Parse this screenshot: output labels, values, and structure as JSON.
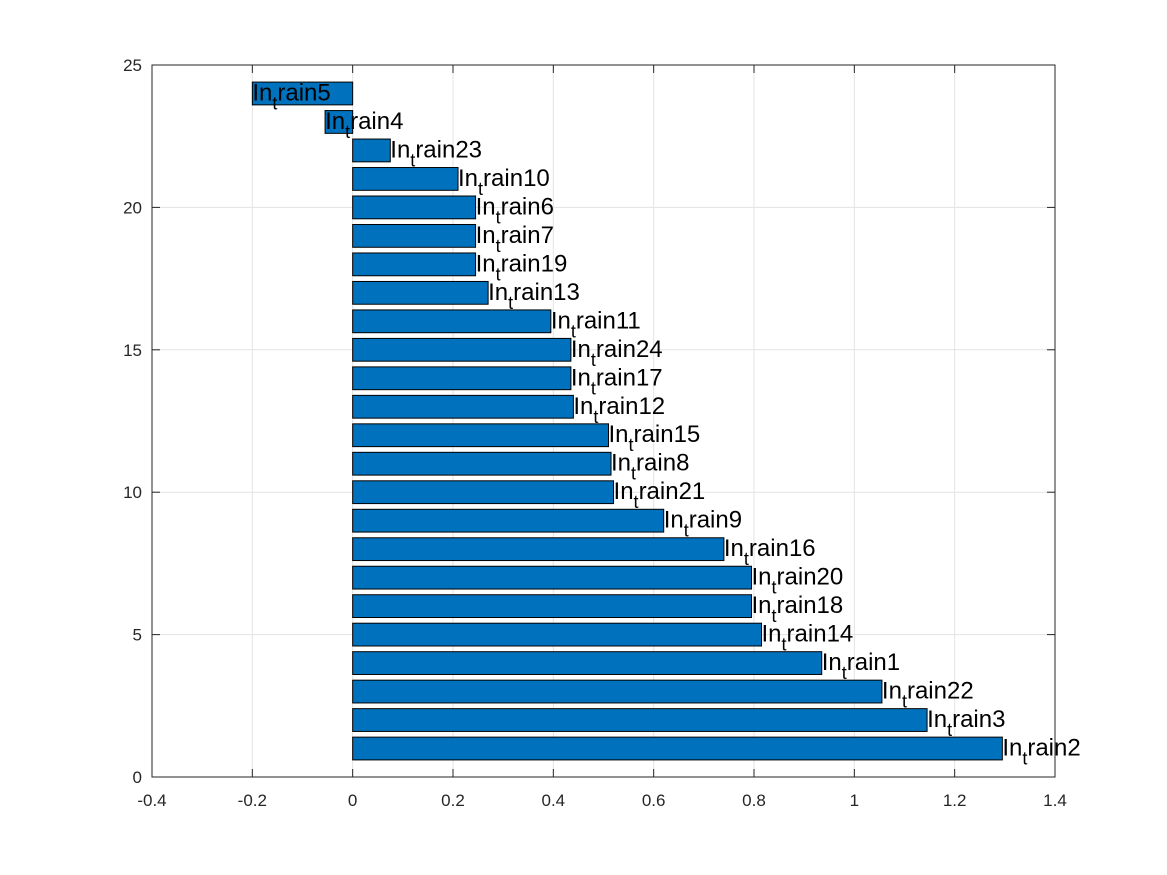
{
  "chart_data": {
    "type": "bar",
    "orientation": "horizontal",
    "title": "",
    "xlabel": "",
    "ylabel": "",
    "xlim": [
      -0.4,
      1.4
    ],
    "ylim": [
      0,
      25
    ],
    "xticks": [
      "-0.4",
      "-0.2",
      "0",
      "0.2",
      "0.4",
      "0.6",
      "0.8",
      "1",
      "1.2",
      "1.4"
    ],
    "yticks": [
      "0",
      "5",
      "10",
      "15",
      "20",
      "25"
    ],
    "grid": true,
    "bar_color": "#0072BD",
    "bars": [
      {
        "y": 1,
        "value": 1.295,
        "label": "In",
        "label_sub": "t",
        "label_rest": "rain2"
      },
      {
        "y": 2,
        "value": 1.145,
        "label": "In",
        "label_sub": "t",
        "label_rest": "rain3"
      },
      {
        "y": 3,
        "value": 1.055,
        "label": "In",
        "label_sub": "t",
        "label_rest": "rain22"
      },
      {
        "y": 4,
        "value": 0.935,
        "label": "In",
        "label_sub": "t",
        "label_rest": "rain1"
      },
      {
        "y": 5,
        "value": 0.815,
        "label": "In",
        "label_sub": "t",
        "label_rest": "rain14"
      },
      {
        "y": 6,
        "value": 0.795,
        "label": "In",
        "label_sub": "t",
        "label_rest": "rain18"
      },
      {
        "y": 7,
        "value": 0.795,
        "label": "In",
        "label_sub": "t",
        "label_rest": "rain20"
      },
      {
        "y": 8,
        "value": 0.74,
        "label": "In",
        "label_sub": "t",
        "label_rest": "rain16"
      },
      {
        "y": 9,
        "value": 0.62,
        "label": "In",
        "label_sub": "t",
        "label_rest": "rain9"
      },
      {
        "y": 10,
        "value": 0.52,
        "label": "In",
        "label_sub": "t",
        "label_rest": "rain21"
      },
      {
        "y": 11,
        "value": 0.515,
        "label": "In",
        "label_sub": "t",
        "label_rest": "rain8"
      },
      {
        "y": 12,
        "value": 0.51,
        "label": "In",
        "label_sub": "t",
        "label_rest": "rain15"
      },
      {
        "y": 13,
        "value": 0.44,
        "label": "In",
        "label_sub": "t",
        "label_rest": "rain12"
      },
      {
        "y": 14,
        "value": 0.435,
        "label": "In",
        "label_sub": "t",
        "label_rest": "rain17"
      },
      {
        "y": 15,
        "value": 0.435,
        "label": "In",
        "label_sub": "t",
        "label_rest": "rain24"
      },
      {
        "y": 16,
        "value": 0.395,
        "label": "In",
        "label_sub": "t",
        "label_rest": "rain11"
      },
      {
        "y": 17,
        "value": 0.27,
        "label": "In",
        "label_sub": "t",
        "label_rest": "rain13"
      },
      {
        "y": 18,
        "value": 0.245,
        "label": "In",
        "label_sub": "t",
        "label_rest": "rain19"
      },
      {
        "y": 19,
        "value": 0.245,
        "label": "In",
        "label_sub": "t",
        "label_rest": "rain7"
      },
      {
        "y": 20,
        "value": 0.245,
        "label": "In",
        "label_sub": "t",
        "label_rest": "rain6"
      },
      {
        "y": 21,
        "value": 0.21,
        "label": "In",
        "label_sub": "t",
        "label_rest": "rain10"
      },
      {
        "y": 22,
        "value": 0.075,
        "label": "In",
        "label_sub": "t",
        "label_rest": "rain23"
      },
      {
        "y": 23,
        "value": -0.055,
        "label": "In",
        "label_sub": "t",
        "label_rest": "rain4"
      },
      {
        "y": 24,
        "value": -0.2,
        "label": "In",
        "label_sub": "t",
        "label_rest": "rain5"
      }
    ]
  }
}
